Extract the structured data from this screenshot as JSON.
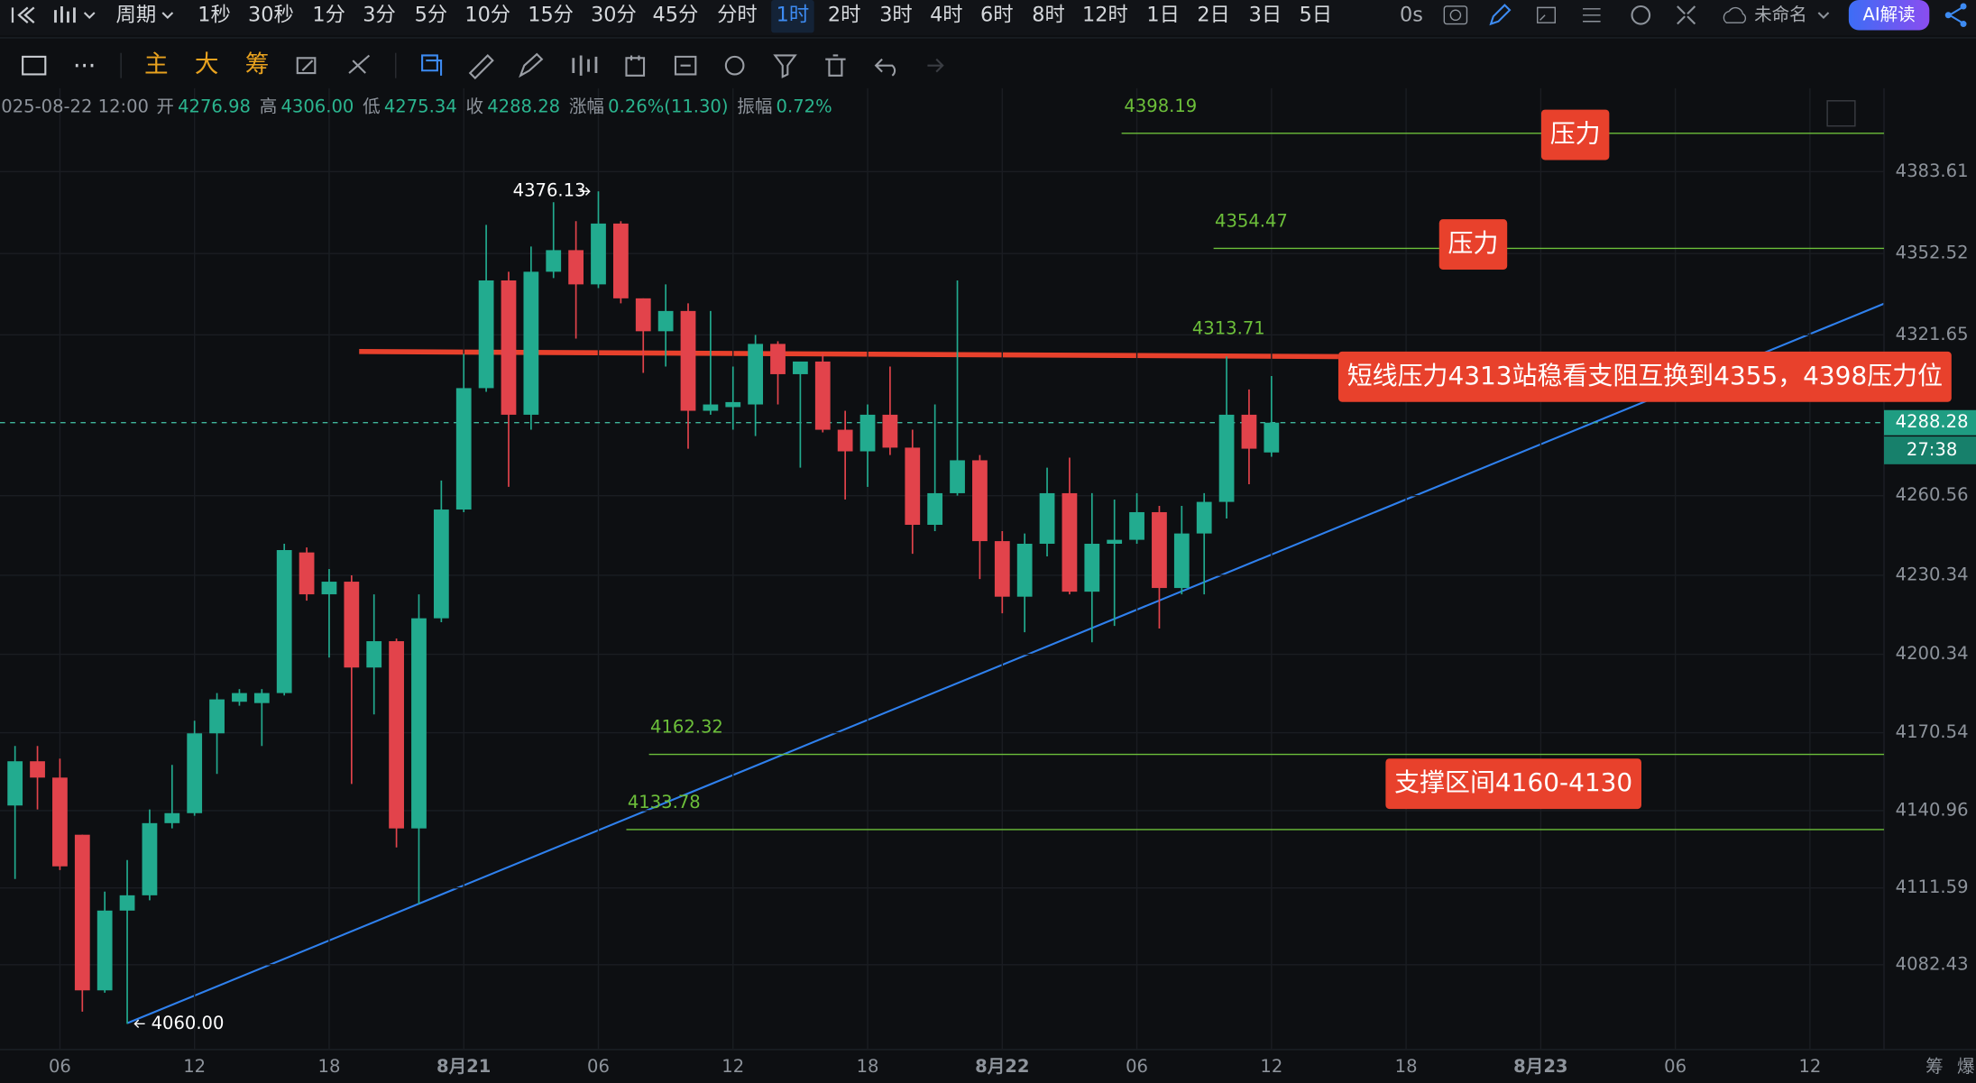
{
  "toolbar": {
    "period": "周期",
    "intervals": [
      "1秒",
      "30秒",
      "1分",
      "3分",
      "5分",
      "10分",
      "15分",
      "30分",
      "45分",
      "分时",
      "1时",
      "2时",
      "3时",
      "4时",
      "6时",
      "8时",
      "12时",
      "1日",
      "2日",
      "3日",
      "5日"
    ],
    "active": "1时",
    "delay": "0s",
    "workspace": "未命名",
    "ai": "AI解读"
  },
  "tools": {
    "main": "主",
    "big": "大",
    "chips": "筹"
  },
  "info": {
    "time": "2025-08-22 12:00",
    "fields": [
      {
        "label": "开",
        "value": "4276.98"
      },
      {
        "label": "高",
        "value": "4306.00"
      },
      {
        "label": "低",
        "value": "4275.34"
      },
      {
        "label": "收",
        "value": "4288.28"
      },
      {
        "label": "涨幅",
        "value": "0.26%(11.30)"
      },
      {
        "label": "振幅",
        "value": "0.72%"
      }
    ]
  },
  "chart_data": {
    "type": "candlestick",
    "up_color": "#22ab8f",
    "down_color": "#e2434b",
    "level_color": "#6cbf3a",
    "open": [
      4142.9,
      4159.7,
      4153.5,
      4131.8,
      4072.7,
      4103.0,
      4108.8,
      4136.2,
      4140.0,
      4170.3,
      4182.3,
      4181.8,
      4185.6,
      4239.0,
      4223.1,
      4227.9,
      4195.3,
      4205.3,
      4134.2,
      4214.0,
      4255.3,
      4301.4,
      4342.3,
      4291.3,
      4345.6,
      4353.8,
      4340.8,
      4363.9,
      4335.5,
      4323.0,
      4330.7,
      4292.8,
      4294.2,
      4295.2,
      4318.2,
      4306.7,
      4311.5,
      4285.6,
      4277.4,
      4291.3,
      4278.8,
      4249.5,
      4261.5,
      4274.0,
      4243.3,
      4222.2,
      4242.3,
      4261.5,
      4224.1,
      4242.3,
      4243.8,
      4254.3,
      4225.5,
      4246.2,
      4258.2,
      4291.3,
      4276.98
    ],
    "high": [
      4165.5,
      4165.5,
      4160.7,
      4131.8,
      4110.2,
      4122.2,
      4141.4,
      4158.3,
      4175.1,
      4185.6,
      4187.1,
      4187.1,
      4242.3,
      4240.9,
      4232.7,
      4230.3,
      4223.1,
      4206.3,
      4223.1,
      4266.3,
      4314.4,
      4363.4,
      4345.6,
      4355.2,
      4372.0,
      4364.8,
      4376.13,
      4364.8,
      4335.5,
      4340.8,
      4333.6,
      4330.7,
      4309.6,
      4321.6,
      4319.2,
      4309.6,
      4314.4,
      4292.8,
      4295.2,
      4309.6,
      4285.6,
      4295.2,
      4342.3,
      4276.0,
      4247.1,
      4246.2,
      4271.2,
      4275.0,
      4261.5,
      4259.1,
      4261.5,
      4256.7,
      4256.7,
      4261.5,
      4313.4,
      4300.9,
      4306.0
    ],
    "low": [
      4115.0,
      4141.4,
      4118.4,
      4064.6,
      4071.8,
      4060,
      4106.9,
      4134.2,
      4139.0,
      4154.9,
      4180.8,
      4165.5,
      4184.7,
      4220.7,
      4199.1,
      4151.1,
      4177.5,
      4127.0,
      4105.4,
      4212.5,
      4254.3,
      4300.0,
      4263.9,
      4285.6,
      4343.2,
      4320.2,
      4339.4,
      4333.6,
      4307.2,
      4309.6,
      4278.4,
      4291.3,
      4285.6,
      4283.2,
      4295.2,
      4271.2,
      4284.6,
      4259.1,
      4263.9,
      4276.0,
      4238.5,
      4247.1,
      4260.6,
      4228.9,
      4215.9,
      4208.7,
      4237.5,
      4223.1,
      4204.9,
      4211.1,
      4242.3,
      4210.1,
      4223.1,
      4223.1,
      4251.9,
      4264.9,
      4275.34
    ],
    "close": [
      4159.7,
      4153.5,
      4119.8,
      4072.7,
      4103.0,
      4108.8,
      4136.2,
      4140.0,
      4170.3,
      4183.2,
      4185.6,
      4185.6,
      4239.9,
      4223.1,
      4227.9,
      4195.3,
      4205.3,
      4134.2,
      4214.0,
      4255.3,
      4301.4,
      4342.3,
      4291.3,
      4345.6,
      4353.8,
      4340.8,
      4363.9,
      4335.5,
      4323.0,
      4330.7,
      4292.8,
      4295.2,
      4296.1,
      4318.2,
      4306.7,
      4311.5,
      4285.6,
      4277.4,
      4291.3,
      4278.8,
      4249.5,
      4261.5,
      4274.0,
      4243.3,
      4222.2,
      4242.3,
      4261.5,
      4224.1,
      4242.3,
      4243.8,
      4254.3,
      4225.5,
      4246.2,
      4258.2,
      4291.3,
      4278.4,
      4288.28
    ],
    "low_label": "4060.00",
    "countdown": "27:38",
    "xlim": [
      -0.67,
      83.3
    ],
    "xticks": [
      {
        "value": 2,
        "label": "06"
      },
      {
        "value": 8,
        "label": "12"
      },
      {
        "value": 14,
        "label": "18"
      },
      {
        "value": 20,
        "label": "8月21"
      },
      {
        "value": 26,
        "label": "06"
      },
      {
        "value": 32,
        "label": "12"
      },
      {
        "value": 38,
        "label": "18"
      },
      {
        "value": 44,
        "label": "8月22"
      },
      {
        "value": 50,
        "label": "06"
      },
      {
        "value": 56,
        "label": "12"
      },
      {
        "value": 62,
        "label": "18"
      },
      {
        "value": 68,
        "label": "8月23"
      },
      {
        "value": 74,
        "label": "06"
      },
      {
        "value": 80,
        "label": "12"
      }
    ],
    "ylim": [
      4050.2,
      4415.3
    ],
    "yticks": [
      4082.43,
      4111.59,
      4140.96,
      4170.54,
      4200.34,
      4230.34,
      4260.56,
      4321.65,
      4352.52,
      4383.61
    ],
    "grid": true,
    "levels": [
      4398.19,
      4354.47,
      4313.71,
      4162.32,
      4133.78
    ],
    "notes": [
      "压力",
      "压力",
      "短线压力4313站稳看支阻互换到4355，4398压力位",
      "支撑区间4160-4130"
    ]
  },
  "corner": [
    "筹",
    "爆"
  ]
}
